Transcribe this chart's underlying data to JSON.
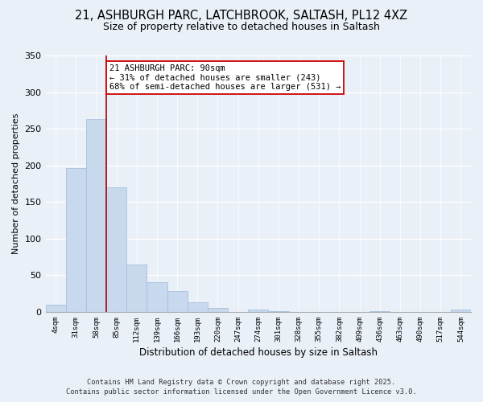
{
  "title_line1": "21, ASHBURGH PARC, LATCHBROOK, SALTASH, PL12 4XZ",
  "title_line2": "Size of property relative to detached houses in Saltash",
  "xlabel": "Distribution of detached houses by size in Saltash",
  "ylabel": "Number of detached properties",
  "bar_labels": [
    "4sqm",
    "31sqm",
    "58sqm",
    "85sqm",
    "112sqm",
    "139sqm",
    "166sqm",
    "193sqm",
    "220sqm",
    "247sqm",
    "274sqm",
    "301sqm",
    "328sqm",
    "355sqm",
    "382sqm",
    "409sqm",
    "436sqm",
    "463sqm",
    "490sqm",
    "517sqm",
    "544sqm"
  ],
  "bar_values": [
    10,
    196,
    263,
    170,
    65,
    40,
    28,
    13,
    5,
    0,
    3,
    1,
    0,
    0,
    0,
    0,
    1,
    0,
    0,
    0,
    3
  ],
  "bar_color": "#c8d8ed",
  "bar_edge_color": "#a8c0de",
  "vline_color": "#aa0000",
  "ylim": [
    0,
    350
  ],
  "yticks": [
    0,
    50,
    100,
    150,
    200,
    250,
    300,
    350
  ],
  "annotation_text": "21 ASHBURGH PARC: 90sqm\n← 31% of detached houses are smaller (243)\n68% of semi-detached houses are larger (531) →",
  "annotation_box_color": "#ffffff",
  "annotation_box_edge": "#cc0000",
  "footer_line1": "Contains HM Land Registry data © Crown copyright and database right 2025.",
  "footer_line2": "Contains public sector information licensed under the Open Government Licence v3.0.",
  "bg_color": "#eaf0f8",
  "grid_color": "#ffffff",
  "vline_bar_index": 3
}
